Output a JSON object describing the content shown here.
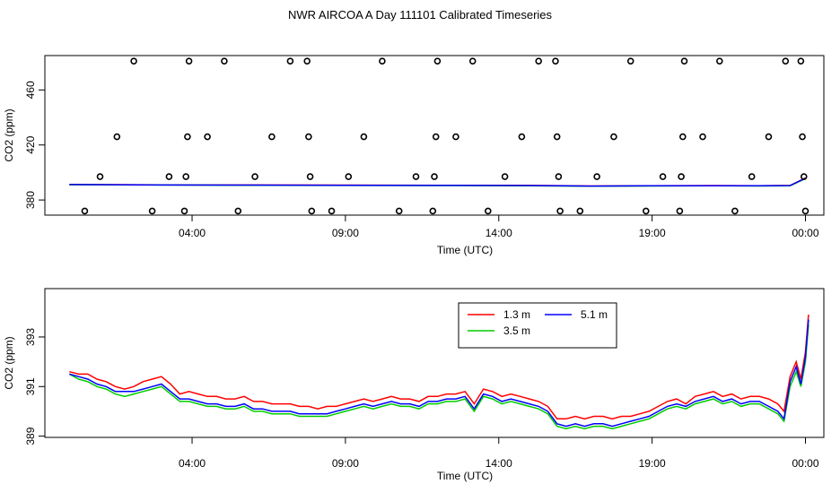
{
  "page": {
    "title": "NWR AIRCOA A  Day 111101  Calibrated Timeseries"
  },
  "chart_data": [
    {
      "type": "scatter",
      "xlabel": "Time (UTC)",
      "ylabel": "CO2 (ppm)",
      "x_ticks": [
        "04:00",
        "09:00",
        "14:00",
        "19:00",
        "00:00"
      ],
      "x_tick_hours": [
        4,
        9,
        14,
        19,
        24
      ],
      "xlim_hours": [
        -0.8,
        24.6
      ],
      "y_ticks": [
        380,
        420,
        460
      ],
      "ylim": [
        369,
        485
      ],
      "points": [
        {
          "t": 0.5,
          "v": 372
        },
        {
          "t": 1.0,
          "v": 397
        },
        {
          "t": 1.55,
          "v": 426
        },
        {
          "t": 2.1,
          "v": 481
        },
        {
          "t": 2.7,
          "v": 372
        },
        {
          "t": 3.25,
          "v": 397
        },
        {
          "t": 3.75,
          "v": 372
        },
        {
          "t": 3.8,
          "v": 397
        },
        {
          "t": 3.85,
          "v": 426
        },
        {
          "t": 3.9,
          "v": 481
        },
        {
          "t": 4.5,
          "v": 426
        },
        {
          "t": 5.05,
          "v": 481
        },
        {
          "t": 5.5,
          "v": 372
        },
        {
          "t": 6.05,
          "v": 397
        },
        {
          "t": 6.6,
          "v": 426
        },
        {
          "t": 7.2,
          "v": 481
        },
        {
          "t": 7.75,
          "v": 481
        },
        {
          "t": 7.8,
          "v": 426
        },
        {
          "t": 7.85,
          "v": 397
        },
        {
          "t": 7.9,
          "v": 372
        },
        {
          "t": 8.55,
          "v": 372
        },
        {
          "t": 9.1,
          "v": 397
        },
        {
          "t": 9.6,
          "v": 426
        },
        {
          "t": 10.2,
          "v": 481
        },
        {
          "t": 10.75,
          "v": 372
        },
        {
          "t": 11.3,
          "v": 397
        },
        {
          "t": 11.85,
          "v": 372
        },
        {
          "t": 11.9,
          "v": 397
        },
        {
          "t": 11.95,
          "v": 426
        },
        {
          "t": 12.0,
          "v": 481
        },
        {
          "t": 12.6,
          "v": 426
        },
        {
          "t": 13.15,
          "v": 481
        },
        {
          "t": 13.65,
          "v": 372
        },
        {
          "t": 14.2,
          "v": 397
        },
        {
          "t": 14.75,
          "v": 426
        },
        {
          "t": 15.3,
          "v": 481
        },
        {
          "t": 15.85,
          "v": 481
        },
        {
          "t": 15.9,
          "v": 426
        },
        {
          "t": 15.95,
          "v": 397
        },
        {
          "t": 16.0,
          "v": 372
        },
        {
          "t": 16.65,
          "v": 372
        },
        {
          "t": 17.2,
          "v": 397
        },
        {
          "t": 17.75,
          "v": 426
        },
        {
          "t": 18.3,
          "v": 481
        },
        {
          "t": 18.8,
          "v": 372
        },
        {
          "t": 19.35,
          "v": 397
        },
        {
          "t": 19.9,
          "v": 372
        },
        {
          "t": 19.95,
          "v": 397
        },
        {
          "t": 20.0,
          "v": 426
        },
        {
          "t": 20.05,
          "v": 481
        },
        {
          "t": 20.65,
          "v": 426
        },
        {
          "t": 21.2,
          "v": 481
        },
        {
          "t": 21.7,
          "v": 372
        },
        {
          "t": 22.25,
          "v": 397
        },
        {
          "t": 22.8,
          "v": 426
        },
        {
          "t": 23.35,
          "v": 481
        },
        {
          "t": 23.85,
          "v": 481
        },
        {
          "t": 23.9,
          "v": 426
        },
        {
          "t": 23.95,
          "v": 397
        },
        {
          "t": 24.0,
          "v": 372
        }
      ],
      "series": [
        {
          "name": "1.3 m",
          "color": "#ff0000",
          "t": [
            0,
            3,
            6,
            9,
            12,
            15,
            17,
            19,
            21,
            22.5,
            23.5,
            24
          ],
          "values": [
            391.2,
            391,
            390.9,
            390.8,
            390.7,
            390.6,
            390.2,
            390.4,
            390.5,
            390.4,
            390.6,
            396
          ]
        },
        {
          "name": "3.5 m",
          "color": "#00cc00",
          "t": [
            0,
            3,
            6,
            9,
            12,
            15,
            17,
            19,
            21,
            22.5,
            23.5,
            24
          ],
          "values": [
            391.1,
            390.9,
            390.7,
            390.6,
            390.5,
            390.4,
            390.0,
            390.2,
            390.3,
            390.2,
            390.4,
            395.5
          ]
        },
        {
          "name": "5.1 m",
          "color": "#0000ff",
          "t": [
            0,
            3,
            6,
            9,
            12,
            15,
            17,
            19,
            21,
            22.5,
            23.5,
            24
          ],
          "values": [
            391.2,
            390.9,
            390.8,
            390.7,
            390.6,
            390.5,
            390.1,
            390.3,
            390.4,
            390.3,
            390.5,
            395.8
          ]
        }
      ]
    },
    {
      "type": "line",
      "xlabel": "Time (UTC)",
      "ylabel": "CO2 (ppm)",
      "x_ticks": [
        "04:00",
        "09:00",
        "14:00",
        "19:00",
        "00:00"
      ],
      "x_tick_hours": [
        4,
        9,
        14,
        19,
        24
      ],
      "xlim_hours": [
        -0.8,
        24.6
      ],
      "y_ticks": [
        "389",
        "391",
        "393"
      ],
      "y_tick_values": [
        389,
        391,
        393
      ],
      "ylim": [
        388.95,
        394.95
      ],
      "legend": {
        "placement": "top-right",
        "entries": [
          "1.3 m",
          "5.1 m",
          "3.5 m"
        ]
      },
      "series": [
        {
          "name": "1.3 m",
          "color": "#ff0000",
          "t": [
            0,
            0.3,
            0.6,
            0.9,
            1.2,
            1.5,
            1.8,
            2.1,
            2.4,
            2.7,
            3.0,
            3.3,
            3.6,
            3.9,
            4.2,
            4.5,
            4.8,
            5.1,
            5.4,
            5.7,
            6.0,
            6.3,
            6.6,
            6.9,
            7.2,
            7.5,
            7.8,
            8.1,
            8.4,
            8.7,
            9.0,
            9.3,
            9.6,
            9.9,
            10.2,
            10.5,
            10.8,
            11.1,
            11.4,
            11.7,
            12.0,
            12.3,
            12.6,
            12.9,
            13.2,
            13.5,
            13.8,
            14.1,
            14.4,
            14.7,
            15.0,
            15.3,
            15.6,
            15.9,
            16.2,
            16.5,
            16.8,
            17.1,
            17.4,
            17.7,
            18.0,
            18.3,
            18.6,
            18.9,
            19.2,
            19.5,
            19.8,
            20.1,
            20.4,
            20.7,
            21.0,
            21.3,
            21.6,
            21.9,
            22.2,
            22.5,
            22.8,
            23.1,
            23.3,
            23.5,
            23.7,
            23.85,
            24.0,
            24.1
          ],
          "values": [
            391.6,
            391.5,
            391.5,
            391.3,
            391.2,
            391.0,
            390.9,
            391.0,
            391.2,
            391.3,
            391.4,
            391.1,
            390.7,
            390.8,
            390.7,
            390.6,
            390.6,
            390.5,
            390.5,
            390.6,
            390.4,
            390.4,
            390.3,
            390.3,
            390.3,
            390.2,
            390.2,
            390.1,
            390.2,
            390.2,
            390.3,
            390.4,
            390.5,
            390.4,
            390.5,
            390.6,
            390.5,
            390.5,
            390.4,
            390.6,
            390.6,
            390.7,
            390.7,
            390.8,
            390.3,
            390.9,
            390.8,
            390.6,
            390.7,
            390.6,
            390.5,
            390.4,
            390.2,
            389.7,
            389.7,
            389.8,
            389.7,
            389.8,
            389.8,
            389.7,
            389.8,
            389.8,
            389.9,
            390.0,
            390.2,
            390.4,
            390.5,
            390.3,
            390.6,
            390.7,
            390.8,
            390.6,
            390.7,
            390.5,
            390.6,
            390.6,
            390.5,
            390.3,
            390.0,
            391.4,
            392.0,
            391.3,
            392.4,
            393.9
          ]
        },
        {
          "name": "3.5 m",
          "color": "#00cc00",
          "t": [
            0,
            0.3,
            0.6,
            0.9,
            1.2,
            1.5,
            1.8,
            2.1,
            2.4,
            2.7,
            3.0,
            3.3,
            3.6,
            3.9,
            4.2,
            4.5,
            4.8,
            5.1,
            5.4,
            5.7,
            6.0,
            6.3,
            6.6,
            6.9,
            7.2,
            7.5,
            7.8,
            8.1,
            8.4,
            8.7,
            9.0,
            9.3,
            9.6,
            9.9,
            10.2,
            10.5,
            10.8,
            11.1,
            11.4,
            11.7,
            12.0,
            12.3,
            12.6,
            12.9,
            13.2,
            13.5,
            13.8,
            14.1,
            14.4,
            14.7,
            15.0,
            15.3,
            15.6,
            15.9,
            16.2,
            16.5,
            16.8,
            17.1,
            17.4,
            17.7,
            18.0,
            18.3,
            18.6,
            18.9,
            19.2,
            19.5,
            19.8,
            20.1,
            20.4,
            20.7,
            21.0,
            21.3,
            21.6,
            21.9,
            22.2,
            22.5,
            22.8,
            23.1,
            23.3,
            23.5,
            23.7,
            23.85,
            24.0,
            24.1
          ],
          "values": [
            391.5,
            391.3,
            391.2,
            391.0,
            390.9,
            390.7,
            390.6,
            390.7,
            390.8,
            390.9,
            391.0,
            390.7,
            390.4,
            390.4,
            390.3,
            390.2,
            390.2,
            390.1,
            390.1,
            390.2,
            390.0,
            390.0,
            389.9,
            389.9,
            389.9,
            389.8,
            389.8,
            389.8,
            389.8,
            389.9,
            390.0,
            390.1,
            390.2,
            390.1,
            390.2,
            390.3,
            390.2,
            390.2,
            390.1,
            390.3,
            390.3,
            390.4,
            390.4,
            390.5,
            390.0,
            390.6,
            390.5,
            390.3,
            390.4,
            390.3,
            390.2,
            390.1,
            389.9,
            389.4,
            389.3,
            389.4,
            389.3,
            389.4,
            389.4,
            389.3,
            389.4,
            389.5,
            389.6,
            389.7,
            389.9,
            390.1,
            390.2,
            390.1,
            390.3,
            390.4,
            390.5,
            390.3,
            390.4,
            390.2,
            390.3,
            390.3,
            390.1,
            389.9,
            389.6,
            391.0,
            391.6,
            391.0,
            392.0,
            393.5
          ]
        },
        {
          "name": "5.1 m",
          "color": "#0000ff",
          "t": [
            0,
            0.3,
            0.6,
            0.9,
            1.2,
            1.5,
            1.8,
            2.1,
            2.4,
            2.7,
            3.0,
            3.3,
            3.6,
            3.9,
            4.2,
            4.5,
            4.8,
            5.1,
            5.4,
            5.7,
            6.0,
            6.3,
            6.6,
            6.9,
            7.2,
            7.5,
            7.8,
            8.1,
            8.4,
            8.7,
            9.0,
            9.3,
            9.6,
            9.9,
            10.2,
            10.5,
            10.8,
            11.1,
            11.4,
            11.7,
            12.0,
            12.3,
            12.6,
            12.9,
            13.2,
            13.5,
            13.8,
            14.1,
            14.4,
            14.7,
            15.0,
            15.3,
            15.6,
            15.9,
            16.2,
            16.5,
            16.8,
            17.1,
            17.4,
            17.7,
            18.0,
            18.3,
            18.6,
            18.9,
            19.2,
            19.5,
            19.8,
            20.1,
            20.4,
            20.7,
            21.0,
            21.3,
            21.6,
            21.9,
            22.2,
            22.5,
            22.8,
            23.1,
            23.3,
            23.5,
            23.7,
            23.85,
            24.0,
            24.1
          ],
          "values": [
            391.5,
            391.4,
            391.3,
            391.1,
            391.0,
            390.8,
            390.8,
            390.8,
            390.9,
            391.0,
            391.1,
            390.8,
            390.5,
            390.5,
            390.4,
            390.3,
            390.3,
            390.2,
            390.2,
            390.3,
            390.1,
            390.1,
            390.0,
            390.0,
            390.0,
            389.9,
            389.9,
            389.9,
            389.9,
            390.0,
            390.1,
            390.2,
            390.3,
            390.2,
            390.3,
            390.4,
            390.3,
            390.3,
            390.2,
            390.4,
            390.4,
            390.5,
            390.5,
            390.6,
            390.1,
            390.7,
            390.6,
            390.4,
            390.5,
            390.4,
            390.3,
            390.2,
            390.0,
            389.5,
            389.4,
            389.5,
            389.4,
            389.5,
            389.5,
            389.4,
            389.5,
            389.6,
            389.7,
            389.8,
            390.0,
            390.2,
            390.3,
            390.2,
            390.4,
            390.5,
            390.6,
            390.4,
            390.5,
            390.3,
            390.4,
            390.4,
            390.2,
            390.0,
            389.7,
            391.2,
            391.8,
            391.1,
            392.2,
            393.7
          ]
        }
      ]
    }
  ]
}
